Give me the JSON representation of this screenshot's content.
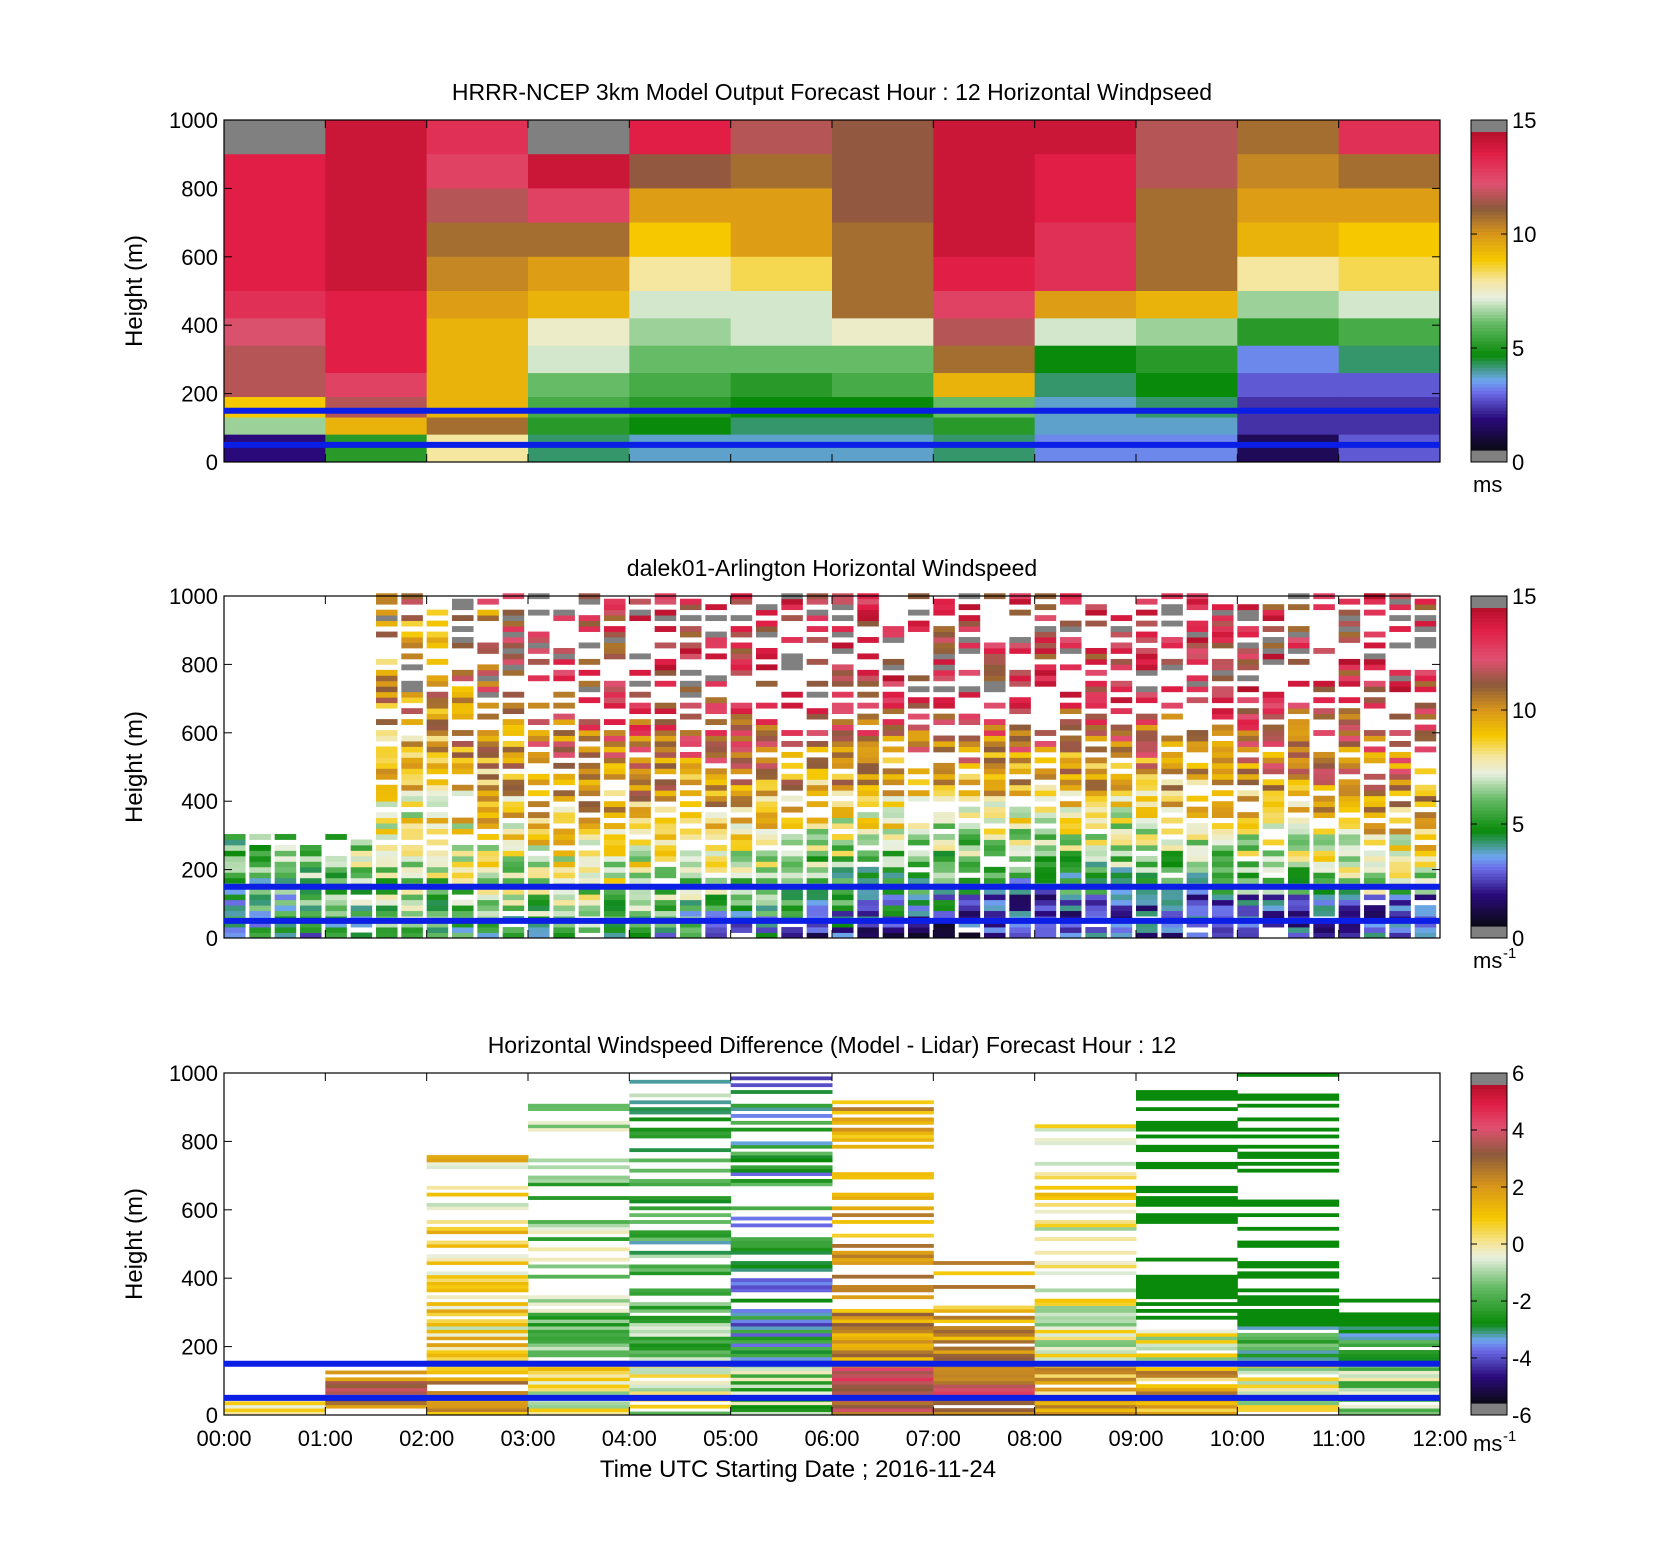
{
  "chart_data": [
    {
      "type": "heatmap",
      "id": "model",
      "title": "HRRR-NCEP 3km Model Output   Forecast Hour : 12 Horizontal Windpseed",
      "ylabel": "Height (m)",
      "xlabel": "",
      "ylim": [
        0,
        1000
      ],
      "xlim": [
        "00:00",
        "12:00"
      ],
      "yticks": [
        "0",
        "200",
        "400",
        "600",
        "800",
        "1000"
      ],
      "xticks": [],
      "colorbar": {
        "ticks": [
          "0",
          "5",
          "10",
          "15"
        ],
        "range": [
          0,
          15
        ],
        "unit": "ms",
        "unit_sup": ""
      },
      "hourly_profile_ms": [
        [
          1.5,
          6.5,
          9,
          12,
          12,
          12.5,
          13.5,
          14,
          14,
          14,
          14,
          0
        ],
        [
          5,
          9.5,
          12,
          13,
          14,
          14,
          14,
          14.5,
          14.5,
          14.5,
          14.5,
          14.5
        ],
        [
          8,
          11,
          9.5,
          9.5,
          9.5,
          9.5,
          10,
          10.5,
          11,
          12,
          13,
          13.5
        ],
        [
          4,
          5,
          5.5,
          6,
          7,
          7.5,
          9.5,
          10,
          11,
          13,
          14.5,
          15
        ],
        [
          3.5,
          4.5,
          5,
          5.5,
          6,
          6.5,
          7,
          8,
          9,
          10,
          11.5,
          14
        ],
        [
          3.5,
          4,
          4.5,
          5,
          6,
          7,
          7,
          8.5,
          10,
          10,
          11,
          12
        ],
        [
          3.5,
          4,
          4.5,
          5.5,
          6,
          7.5,
          11,
          11,
          11,
          11.5,
          11.5,
          11.5
        ],
        [
          4,
          5,
          6,
          9.5,
          11,
          12,
          13,
          14,
          14.5,
          14.5,
          14.5,
          14.5
        ],
        [
          3,
          3.5,
          3.5,
          4,
          4.5,
          7,
          10,
          13.5,
          13.5,
          14,
          14,
          14.5
        ],
        [
          3,
          3.5,
          4,
          4.5,
          5,
          6.5,
          9.5,
          11,
          11,
          11,
          12,
          12
        ],
        [
          1,
          2,
          2,
          2.5,
          3,
          5,
          6.5,
          8,
          9.5,
          10,
          10.5,
          11
        ],
        [
          2.5,
          2,
          2,
          2.5,
          4,
          5.5,
          7,
          8.5,
          9,
          10,
          11,
          13.5
        ]
      ],
      "reference_lines_m": [
        50,
        150
      ]
    },
    {
      "type": "heatmap",
      "id": "lidar",
      "title": "dalek01-Arlington  Horizontal Windspeed",
      "ylabel": "Height (m)",
      "xlabel": "",
      "ylim": [
        0,
        1000
      ],
      "xlim": [
        "00:00",
        "12:00"
      ],
      "yticks": [
        "0",
        "200",
        "400",
        "600",
        "800",
        "1000"
      ],
      "xticks": [],
      "colorbar": {
        "ticks": [
          "0",
          "5",
          "10",
          "15"
        ],
        "range": [
          0,
          15
        ],
        "unit": "ms",
        "unit_sup": "-1"
      },
      "reference_lines_m": [
        50,
        150
      ]
    },
    {
      "type": "heatmap",
      "id": "difference",
      "title": "Horizontal Windspeed Difference (Model - Lidar) Forecast Hour : 12",
      "ylabel": "Height (m)",
      "xlabel": "Time UTC  Starting Date ; 2016-11-24",
      "ylim": [
        0,
        1000
      ],
      "xlim": [
        "00:00",
        "12:00"
      ],
      "yticks": [
        "0",
        "200",
        "400",
        "600",
        "800",
        "1000"
      ],
      "xticks": [
        "00:00",
        "01:00",
        "02:00",
        "03:00",
        "04:00",
        "05:00",
        "06:00",
        "07:00",
        "08:00",
        "09:00",
        "10:00",
        "11:00",
        "12:00"
      ],
      "colorbar": {
        "ticks": [
          "-6",
          "-4",
          "-2",
          "0",
          "2",
          "4",
          "6"
        ],
        "range": [
          -6,
          6
        ],
        "unit": "ms",
        "unit_sup": "-1"
      },
      "reference_lines_m": [
        50,
        150
      ]
    }
  ],
  "colors": {
    "reference_line": "#0a1ee6",
    "missing": "#ffffff",
    "colormap": [
      "#1a1a1a",
      "#1b0a4e",
      "#3b2aa8",
      "#7d8ff0",
      "#2f7fcf",
      "#0a8a0a",
      "#55b455",
      "#c9e6c0",
      "#f5f0e0",
      "#f5cc00",
      "#d99a1a",
      "#8c5a3c",
      "#d9556e",
      "#e02046",
      "#c8102e",
      "#b0b0b0"
    ]
  }
}
